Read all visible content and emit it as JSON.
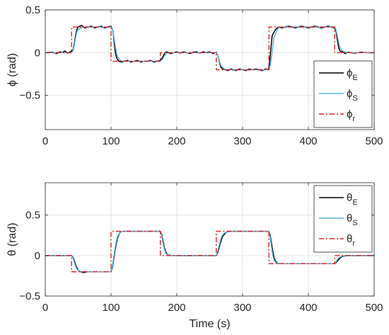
{
  "chart_data": [
    {
      "type": "line",
      "xlabel": "",
      "ylabel": "ϕ (rad)",
      "xlim": [
        0,
        500
      ],
      "ylim": [
        -0.9,
        0.5
      ],
      "xticks": [
        0,
        100,
        200,
        300,
        400,
        500
      ],
      "yticks": [
        0.5,
        0,
        -0.5
      ],
      "ytick_labels": [
        "0.5",
        "0",
        "−0.5"
      ],
      "grid": true,
      "legend_position": "bottom-right",
      "series": [
        {
          "name": "ϕE",
          "legend_main": "ϕ",
          "legend_sub": "E",
          "color": "#000000",
          "style": "solid",
          "x": [
            0,
            10,
            18,
            22,
            26,
            30,
            34,
            38,
            42,
            44,
            46,
            48,
            50,
            55,
            60,
            65,
            70,
            75,
            80,
            85,
            90,
            95,
            100,
            103,
            105,
            107,
            109,
            112,
            116,
            120,
            125,
            130,
            135,
            140,
            145,
            150,
            155,
            160,
            165,
            170,
            175,
            178,
            180,
            182,
            185,
            190,
            195,
            200,
            205,
            210,
            215,
            220,
            225,
            230,
            235,
            240,
            245,
            250,
            255,
            260,
            263,
            265,
            267,
            270,
            274,
            278,
            282,
            286,
            290,
            295,
            300,
            305,
            310,
            315,
            320,
            325,
            330,
            335,
            339,
            341,
            343,
            345,
            350,
            355,
            360,
            365,
            370,
            375,
            380,
            385,
            390,
            395,
            400,
            405,
            410,
            415,
            420,
            425,
            430,
            435,
            440,
            442,
            444,
            446,
            448,
            452,
            456,
            460,
            465,
            470,
            480,
            490,
            500
          ],
          "y": [
            0,
            0.005,
            -0.01,
            0.01,
            0,
            0.02,
            -0.005,
            0.01,
            0.03,
            0.1,
            0.2,
            0.27,
            0.3,
            0.32,
            0.29,
            0.3,
            0.31,
            0.29,
            0.3,
            0.31,
            0.29,
            0.3,
            0.31,
            0.25,
            0.1,
            -0.02,
            -0.07,
            -0.1,
            -0.11,
            -0.1,
            -0.09,
            -0.11,
            -0.1,
            -0.09,
            -0.11,
            -0.1,
            -0.1,
            -0.09,
            -0.11,
            -0.1,
            -0.09,
            -0.06,
            -0.03,
            0,
            0.01,
            -0.01,
            0,
            0.01,
            -0.005,
            0.01,
            0,
            -0.01,
            0.005,
            0.01,
            -0.005,
            0.01,
            0,
            0.01,
            -0.01,
            0.005,
            -0.05,
            -0.12,
            -0.17,
            -0.19,
            -0.2,
            -0.21,
            -0.19,
            -0.2,
            -0.21,
            -0.19,
            -0.2,
            -0.21,
            -0.19,
            -0.2,
            -0.19,
            -0.2,
            -0.21,
            -0.19,
            -0.2,
            -0.12,
            0.05,
            0.2,
            0.27,
            0.3,
            0.29,
            0.3,
            0.31,
            0.3,
            0.29,
            0.3,
            0.31,
            0.3,
            0.29,
            0.3,
            0.31,
            0.3,
            0.29,
            0.3,
            0.31,
            0.3,
            0.29,
            0.25,
            0.15,
            0.06,
            0.02,
            0.01,
            -0.01,
            0.005,
            0,
            -0.005,
            0.005,
            0,
            0
          ]
        },
        {
          "name": "ϕS",
          "legend_main": "ϕ",
          "legend_sub": "S",
          "color": "#5ab4dc",
          "style": "solid",
          "x": [
            0,
            40,
            42,
            44,
            46,
            48,
            50,
            55,
            60,
            100,
            102,
            104,
            106,
            108,
            110,
            114,
            118,
            125,
            175,
            178,
            181,
            184,
            188,
            195,
            260,
            262,
            264,
            266,
            268,
            272,
            276,
            280,
            340,
            342,
            344,
            346,
            348,
            352,
            356,
            440,
            442,
            444,
            446,
            448,
            452,
            456,
            460,
            500
          ],
          "y": [
            0,
            0,
            0.02,
            0.08,
            0.17,
            0.24,
            0.27,
            0.29,
            0.3,
            0.3,
            0.27,
            0.2,
            0.1,
            0.01,
            -0.05,
            -0.09,
            -0.1,
            -0.1,
            -0.1,
            -0.08,
            -0.04,
            -0.01,
            0,
            0,
            0,
            -0.03,
            -0.08,
            -0.13,
            -0.16,
            -0.19,
            -0.2,
            -0.2,
            -0.2,
            -0.15,
            -0.05,
            0.08,
            0.18,
            0.26,
            0.3,
            0.3,
            0.27,
            0.2,
            0.12,
            0.06,
            0.02,
            0.005,
            0,
            0
          ]
        },
        {
          "name": "ϕr",
          "legend_main": "ϕ",
          "legend_sub": "r",
          "color": "#e02020",
          "style": "dashdot",
          "x": [
            0,
            40,
            40,
            100,
            100,
            175,
            175,
            260,
            260,
            340,
            340,
            440,
            440,
            500
          ],
          "y": [
            0,
            0,
            0.3,
            0.3,
            -0.1,
            -0.1,
            0,
            0,
            -0.2,
            -0.2,
            0.3,
            0.3,
            0,
            0
          ]
        }
      ]
    },
    {
      "type": "line",
      "xlabel": "Time (s)",
      "ylabel": "θ (rad)",
      "xlim": [
        0,
        500
      ],
      "ylim": [
        -0.5,
        0.9
      ],
      "xticks": [
        0,
        100,
        200,
        300,
        400,
        500
      ],
      "yticks": [
        0.5,
        0,
        -0.5
      ],
      "ytick_labels": [
        "0.5",
        "0",
        "−0.5"
      ],
      "grid": true,
      "legend_position": "top-right",
      "series": [
        {
          "name": "θE",
          "legend_main": "θ",
          "legend_sub": "E",
          "color": "#000000",
          "style": "solid",
          "x": [
            0,
            40,
            42,
            44,
            46,
            48,
            50,
            54,
            58,
            64,
            70,
            100,
            102,
            104,
            106,
            108,
            110,
            112,
            114,
            118,
            122,
            130,
            175,
            177,
            179,
            181,
            183,
            185,
            188,
            192,
            198,
            260,
            262,
            264,
            266,
            268,
            270,
            274,
            278,
            284,
            340,
            342,
            344,
            346,
            348,
            350,
            354,
            358,
            364,
            440,
            442,
            444,
            446,
            448,
            452,
            458,
            500
          ],
          "y": [
            0,
            0,
            -0.02,
            -0.06,
            -0.11,
            -0.15,
            -0.18,
            -0.2,
            -0.21,
            -0.2,
            -0.2,
            -0.2,
            -0.15,
            -0.05,
            0.06,
            0.15,
            0.22,
            0.26,
            0.29,
            0.3,
            0.3,
            0.3,
            0.3,
            0.26,
            0.18,
            0.1,
            0.05,
            0.02,
            0.005,
            0,
            0,
            0,
            0.03,
            0.09,
            0.15,
            0.2,
            0.24,
            0.28,
            0.3,
            0.3,
            0.3,
            0.25,
            0.15,
            0.05,
            -0.03,
            -0.07,
            -0.1,
            -0.1,
            -0.1,
            -0.1,
            -0.09,
            -0.07,
            -0.05,
            -0.03,
            -0.01,
            0,
            0
          ]
        },
        {
          "name": "θS",
          "legend_main": "θ",
          "legend_sub": "S",
          "color": "#5ab4dc",
          "style": "solid",
          "x": [
            0,
            40,
            42,
            44,
            46,
            48,
            52,
            56,
            62,
            100,
            102,
            104,
            106,
            108,
            110,
            113,
            117,
            124,
            175,
            177,
            179,
            181,
            183,
            186,
            190,
            260,
            262,
            264,
            266,
            268,
            271,
            275,
            282,
            340,
            342,
            344,
            346,
            348,
            351,
            356,
            440,
            442,
            444,
            446,
            450,
            456,
            500
          ],
          "y": [
            0,
            0,
            -0.03,
            -0.08,
            -0.13,
            -0.17,
            -0.19,
            -0.2,
            -0.2,
            -0.2,
            -0.13,
            -0.02,
            0.09,
            0.18,
            0.24,
            0.28,
            0.3,
            0.3,
            0.3,
            0.24,
            0.15,
            0.08,
            0.03,
            0.01,
            0,
            0,
            0.05,
            0.12,
            0.18,
            0.23,
            0.27,
            0.29,
            0.3,
            0.3,
            0.22,
            0.1,
            0,
            -0.06,
            -0.09,
            -0.1,
            -0.1,
            -0.08,
            -0.05,
            -0.03,
            -0.01,
            0,
            0
          ]
        },
        {
          "name": "θr",
          "legend_main": "θ",
          "legend_sub": "r",
          "color": "#e02020",
          "style": "dashdot",
          "x": [
            0,
            40,
            40,
            100,
            100,
            175,
            175,
            260,
            260,
            340,
            340,
            440,
            440,
            500
          ],
          "y": [
            0,
            0,
            -0.2,
            -0.2,
            0.3,
            0.3,
            0,
            0,
            0.3,
            0.3,
            -0.1,
            -0.1,
            0,
            0
          ]
        }
      ]
    }
  ]
}
